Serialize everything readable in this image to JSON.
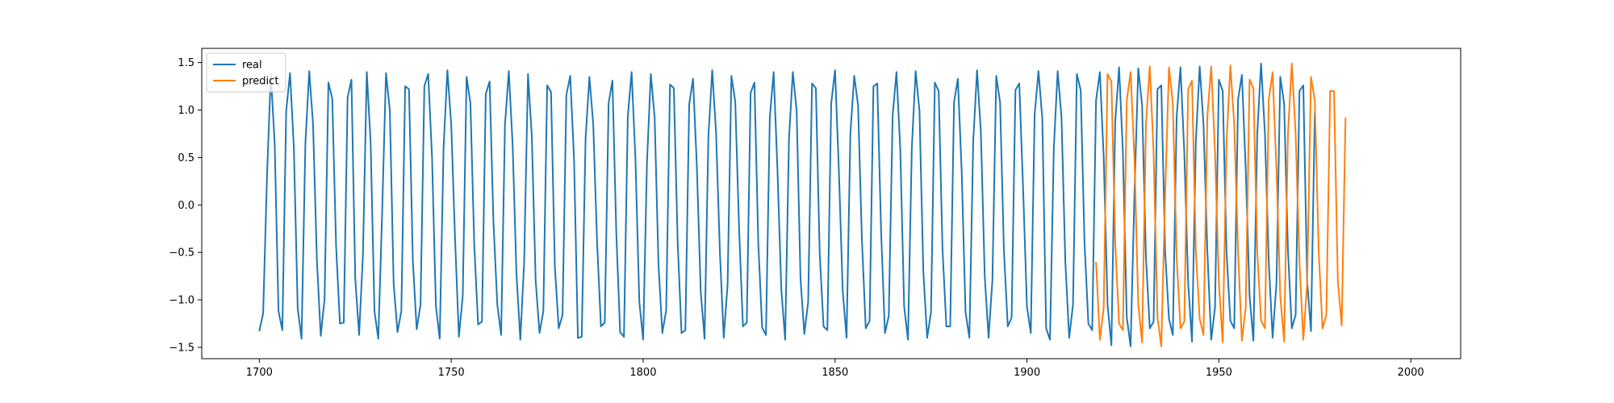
{
  "chart_data": {
    "type": "line",
    "title": "",
    "xlabel": "",
    "ylabel": "",
    "xlim": [
      1685,
      2013
    ],
    "ylim": [
      -1.62,
      1.65
    ],
    "xticks": [
      1700,
      1750,
      1800,
      1850,
      1900,
      1950,
      2000
    ],
    "yticks": [
      1.5,
      1.0,
      0.5,
      0.0,
      -0.5,
      -1.0,
      -1.5
    ],
    "xtick_labels": [
      "1700",
      "1750",
      "1800",
      "1850",
      "1900",
      "1950",
      "2000"
    ],
    "ytick_labels": [
      "1.5",
      "1.0",
      "0.5",
      "0.0",
      "−0.5",
      "−1.0",
      "−1.5"
    ],
    "grid": false,
    "legend": "upper-left",
    "colors": {
      "real": "#1f77b4",
      "predict": "#ff7f0e"
    },
    "series": [
      {
        "name": "real",
        "x_start": 1700,
        "x_step": 1,
        "values": [
          -1.33,
          -1.14,
          0.3,
          1.38,
          0.65,
          -1.12,
          -1.32,
          0.99,
          1.39,
          0.6,
          -1.09,
          -1.41,
          0.65,
          1.41,
          0.85,
          -0.58,
          -1.38,
          -0.99,
          1.29,
          1.12,
          -0.43,
          -1.25,
          -1.24,
          1.13,
          1.32,
          -0.78,
          -1.37,
          -0.52,
          1.4,
          0.66,
          -1.12,
          -1.41,
          -0.08,
          1.39,
          1.0,
          -0.83,
          -1.34,
          -1.12,
          1.25,
          1.22,
          -0.59,
          -1.31,
          -1.05,
          1.25,
          1.38,
          0.5,
          -1.06,
          -1.41,
          0.6,
          1.42,
          0.85,
          -0.36,
          -1.39,
          -0.96,
          1.35,
          1.07,
          -0.42,
          -1.26,
          -1.23,
          1.17,
          1.3,
          -0.18,
          -1.05,
          -1.37,
          0.84,
          1.41,
          0.63,
          -0.73,
          -1.42,
          -0.6,
          1.38,
          0.72,
          -0.8,
          -1.35,
          -1.12,
          1.26,
          1.19,
          -0.65,
          -1.3,
          -1.16,
          1.16,
          1.36,
          0.48,
          -1.4,
          -1.39,
          0.7,
          1.35,
          0.85,
          -0.39,
          -1.28,
          -1.24,
          1.07,
          1.31,
          -0.29,
          -1.34,
          -1.39,
          0.93,
          1.4,
          0.48,
          -1.02,
          -1.42,
          0.45,
          1.38,
          0.92,
          -0.63,
          -1.35,
          -1.11,
          1.27,
          1.23,
          -0.4,
          -1.35,
          -1.32,
          1.06,
          1.33,
          0.4,
          -0.91,
          -1.41,
          0.72,
          1.42,
          0.76,
          -0.5,
          -1.4,
          -0.84,
          1.36,
          1.09,
          -0.25,
          -1.28,
          -1.24,
          1.18,
          1.29,
          -0.4,
          -1.29,
          -1.37,
          0.92,
          1.4,
          0.37,
          -0.89,
          -1.42,
          0.7,
          1.4,
          0.99,
          -0.78,
          -1.36,
          -1.02,
          1.28,
          1.23,
          -0.51,
          -1.28,
          -1.32,
          1.07,
          1.42,
          0.36,
          -0.91,
          -1.4,
          0.76,
          1.36,
          1.05,
          -0.37,
          -1.3,
          -1.22,
          1.25,
          1.28,
          -0.28,
          -1.35,
          -1.17,
          0.94,
          1.4,
          0.59,
          -1.07,
          -1.42,
          0.6,
          1.41,
          0.99,
          -0.7,
          -1.4,
          -1.13,
          1.29,
          1.2,
          -0.47,
          -1.28,
          -1.28,
          1.08,
          1.33,
          0.35,
          -1.13,
          -1.4,
          0.67,
          1.42,
          0.76,
          -0.75,
          -1.4,
          -0.79,
          1.36,
          1.08,
          -0.48,
          -1.28,
          -1.19,
          1.21,
          1.28,
          0.17,
          -1.07,
          -1.35,
          0.95,
          1.41,
          0.91,
          -1.3,
          -1.42,
          0.6,
          1.41,
          0.92,
          -0.6,
          -1.4,
          -1.05,
          1.38,
          1.21,
          -0.4,
          -1.25,
          -1.32,
          1.1,
          1.4,
          0.5,
          -1.05,
          -1.48,
          0.88,
          1.45,
          0.55,
          -1.18,
          -1.49,
          0.1,
          1.44,
          1.05,
          -0.55,
          -1.3,
          -1.23,
          1.22,
          1.26,
          -0.49,
          -1.2,
          -1.37,
          0.93,
          1.45,
          0.55,
          -0.82,
          -1.44,
          0.67,
          1.46,
          0.85,
          -0.49,
          -1.42,
          -1.08,
          1.32,
          1.2,
          -0.5,
          -1.22,
          -1.3,
          1.11,
          1.37,
          0.38,
          -0.96,
          -1.43,
          0.75,
          1.49,
          0.75,
          -0.6,
          -1.4,
          -0.83,
          1.35,
          1.07,
          -0.48,
          -1.3,
          -1.16,
          1.2,
          1.26,
          -0.8,
          -1.33,
          0.98
        ]
      },
      {
        "name": "predict",
        "x_start": 1918,
        "x_step": 1,
        "values": [
          -0.6,
          -1.42,
          -1.08,
          1.38,
          1.3,
          -0.4,
          -1.25,
          -1.32,
          1.1,
          1.4,
          0.5,
          -1.05,
          -1.45,
          0.85,
          1.46,
          0.55,
          -1.18,
          -1.49,
          0.1,
          1.45,
          1.07,
          -0.55,
          -1.3,
          -1.23,
          1.22,
          1.31,
          -0.49,
          -1.2,
          -1.37,
          0.93,
          1.46,
          0.55,
          -0.82,
          -1.45,
          0.67,
          1.47,
          0.85,
          -0.49,
          -1.43,
          -1.08,
          1.32,
          1.23,
          -0.5,
          -1.22,
          -1.3,
          1.11,
          1.4,
          0.38,
          -0.96,
          -1.44,
          0.75,
          1.49,
          0.75,
          -0.6,
          -1.42,
          -0.83,
          1.35,
          1.1,
          -0.48,
          -1.3,
          -1.16,
          1.2,
          1.2,
          -0.8,
          -1.27,
          0.92
        ]
      }
    ]
  }
}
